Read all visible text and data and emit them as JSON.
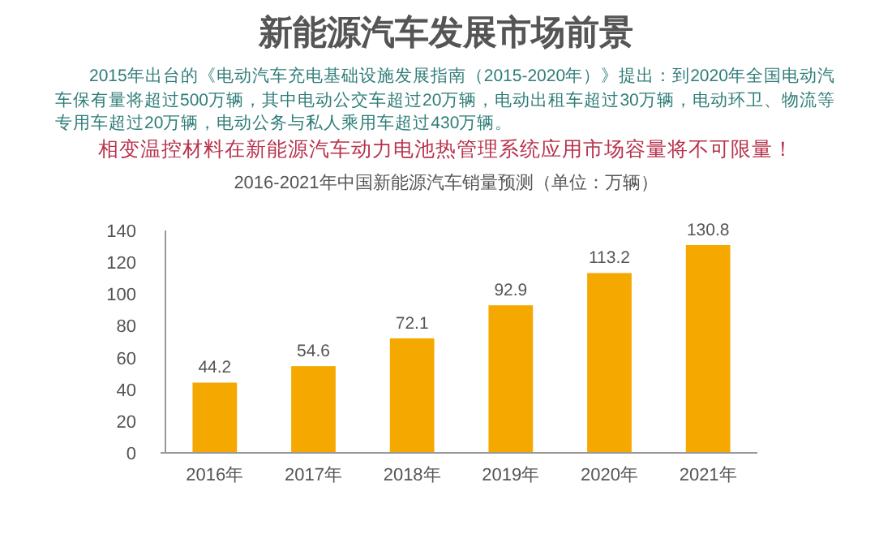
{
  "chart_data": {
    "type": "bar",
    "title": "新能源汽车发展市场前景",
    "subtitle": "2016-2021年中国新能源汽车销量预测（单位：万辆）",
    "annotations": [
      "2015年出台的《电动汽车充电基础设施发展指南（2015-2020年）》提出：到2020年全国电动汽车保有量将超过500万辆，其中电动公交车超过20万辆，电动出租车超过30万辆，电动环卫、物流等专用车超过20万辆，电动公务与私人乘用车超过430万辆。",
      "相变温控材料在新能源汽车动力电池热管理系统应用市场容量将不可限量！"
    ],
    "categories": [
      "2016年",
      "2017年",
      "2018年",
      "2019年",
      "2020年",
      "2021年"
    ],
    "values": [
      44.2,
      54.6,
      72.1,
      92.9,
      113.2,
      130.8
    ],
    "color": "#f5a800",
    "ylim": [
      0,
      140
    ],
    "yticks": [
      0,
      20,
      40,
      60,
      80,
      100,
      120,
      140
    ],
    "data_labels": true
  }
}
